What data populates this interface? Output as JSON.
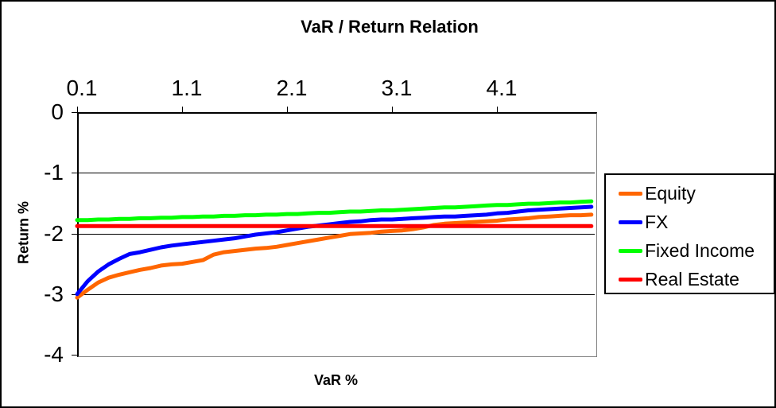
{
  "chart_data": {
    "type": "line",
    "title": "VaR / Return Relation",
    "xlabel": "VaR %",
    "ylabel": "Return %",
    "x_axis_position": "top",
    "x_tick_labels": [
      "0.1",
      "1.1",
      "2.1",
      "3.1",
      "4.1"
    ],
    "y_tick_labels": [
      "0",
      "-1",
      "-2",
      "-3",
      "-4"
    ],
    "xlim": [
      0.1,
      5.1
    ],
    "ylim": [
      -4,
      0
    ],
    "grid": "horizontal",
    "legend_position": "right",
    "x": [
      0.1,
      0.2,
      0.3,
      0.4,
      0.5,
      0.6,
      0.7,
      0.8,
      0.9,
      1.0,
      1.1,
      1.2,
      1.3,
      1.4,
      1.5,
      1.6,
      1.7,
      1.8,
      1.9,
      2.0,
      2.1,
      2.2,
      2.3,
      2.4,
      2.5,
      2.6,
      2.7,
      2.8,
      2.9,
      3.0,
      3.1,
      3.2,
      3.3,
      3.4,
      3.5,
      3.6,
      3.7,
      3.8,
      3.9,
      4.0,
      4.1,
      4.2,
      4.3,
      4.4,
      4.5,
      4.6,
      4.7,
      4.8,
      4.9,
      5.0
    ],
    "series": [
      {
        "name": "Equity",
        "color": "#FF6600",
        "values": [
          -3.06,
          -2.93,
          -2.81,
          -2.73,
          -2.68,
          -2.64,
          -2.6,
          -2.57,
          -2.53,
          -2.51,
          -2.5,
          -2.47,
          -2.44,
          -2.35,
          -2.31,
          -2.29,
          -2.27,
          -2.25,
          -2.24,
          -2.22,
          -2.19,
          -2.16,
          -2.13,
          -2.1,
          -2.07,
          -2.04,
          -2.01,
          -2.0,
          -1.99,
          -1.97,
          -1.96,
          -1.95,
          -1.93,
          -1.9,
          -1.86,
          -1.84,
          -1.83,
          -1.82,
          -1.81,
          -1.8,
          -1.79,
          -1.77,
          -1.76,
          -1.75,
          -1.73,
          -1.72,
          -1.71,
          -1.7,
          -1.7,
          -1.69
        ]
      },
      {
        "name": "FX",
        "color": "#0000FF",
        "values": [
          -3.0,
          -2.79,
          -2.63,
          -2.51,
          -2.42,
          -2.34,
          -2.31,
          -2.27,
          -2.23,
          -2.2,
          -2.18,
          -2.16,
          -2.14,
          -2.12,
          -2.1,
          -2.08,
          -2.05,
          -2.02,
          -2.0,
          -1.98,
          -1.95,
          -1.92,
          -1.89,
          -1.87,
          -1.85,
          -1.83,
          -1.81,
          -1.8,
          -1.78,
          -1.77,
          -1.77,
          -1.76,
          -1.75,
          -1.74,
          -1.73,
          -1.72,
          -1.72,
          -1.71,
          -1.7,
          -1.69,
          -1.67,
          -1.66,
          -1.64,
          -1.62,
          -1.61,
          -1.6,
          -1.59,
          -1.58,
          -1.57,
          -1.56
        ]
      },
      {
        "name": "Fixed Income",
        "color": "#00FF00",
        "values": [
          -1.78,
          -1.78,
          -1.77,
          -1.77,
          -1.76,
          -1.76,
          -1.75,
          -1.75,
          -1.74,
          -1.74,
          -1.73,
          -1.73,
          -1.72,
          -1.72,
          -1.71,
          -1.71,
          -1.7,
          -1.7,
          -1.69,
          -1.69,
          -1.68,
          -1.68,
          -1.67,
          -1.66,
          -1.66,
          -1.65,
          -1.64,
          -1.64,
          -1.63,
          -1.62,
          -1.62,
          -1.61,
          -1.6,
          -1.59,
          -1.58,
          -1.57,
          -1.57,
          -1.56,
          -1.55,
          -1.54,
          -1.53,
          -1.53,
          -1.52,
          -1.51,
          -1.51,
          -1.5,
          -1.49,
          -1.49,
          -1.48,
          -1.47
        ]
      },
      {
        "name": "Real Estate",
        "color": "#FF0000",
        "values": [
          -1.88,
          -1.88,
          -1.88,
          -1.88,
          -1.88,
          -1.88,
          -1.88,
          -1.88,
          -1.88,
          -1.88,
          -1.88,
          -1.88,
          -1.88,
          -1.88,
          -1.88,
          -1.88,
          -1.88,
          -1.88,
          -1.88,
          -1.88,
          -1.88,
          -1.88,
          -1.88,
          -1.88,
          -1.88,
          -1.88,
          -1.88,
          -1.88,
          -1.88,
          -1.88,
          -1.88,
          -1.88,
          -1.88,
          -1.88,
          -1.88,
          -1.88,
          -1.88,
          -1.88,
          -1.88,
          -1.88,
          -1.88,
          -1.88,
          -1.88,
          -1.88,
          -1.88,
          -1.88,
          -1.88,
          -1.88,
          -1.88,
          -1.88
        ]
      }
    ]
  }
}
